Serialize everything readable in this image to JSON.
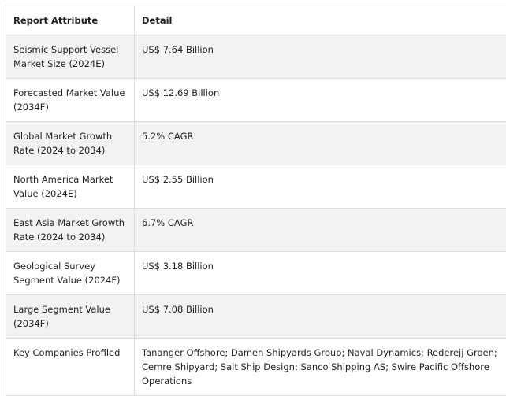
{
  "table": {
    "headers": {
      "attribute": "Report Attribute",
      "detail": "Detail"
    },
    "rows": [
      {
        "attribute": "Seismic Support Vessel Market Size (2024E)",
        "detail": "US$ 7.64 Billion"
      },
      {
        "attribute": "Forecasted Market Value (2034F)",
        "detail": "US$ 12.69 Billion"
      },
      {
        "attribute": "Global Market Growth Rate (2024 to 2034)",
        "detail": "5.2% CAGR"
      },
      {
        "attribute": "North America Market Value (2024E)",
        "detail": "US$ 2.55 Billion"
      },
      {
        "attribute": "East Asia Market Growth Rate (2024 to 2034)",
        "detail": "6.7% CAGR"
      },
      {
        "attribute": "Geological Survey Segment Value (2024F)",
        "detail": "US$ 3.18 Billion"
      },
      {
        "attribute": "Large Segment Value (2034F)",
        "detail": "US$ 7.08 Billion"
      },
      {
        "attribute": "Key Companies Profiled",
        "detail": "Tananger Offshore; Damen Shipyards Group; Naval Dynamics; Rederejj Groen; Cemre Shipyard; Salt Ship Design; Sanco Shipping AS; Swire Pacific Offshore Operations"
      }
    ]
  }
}
